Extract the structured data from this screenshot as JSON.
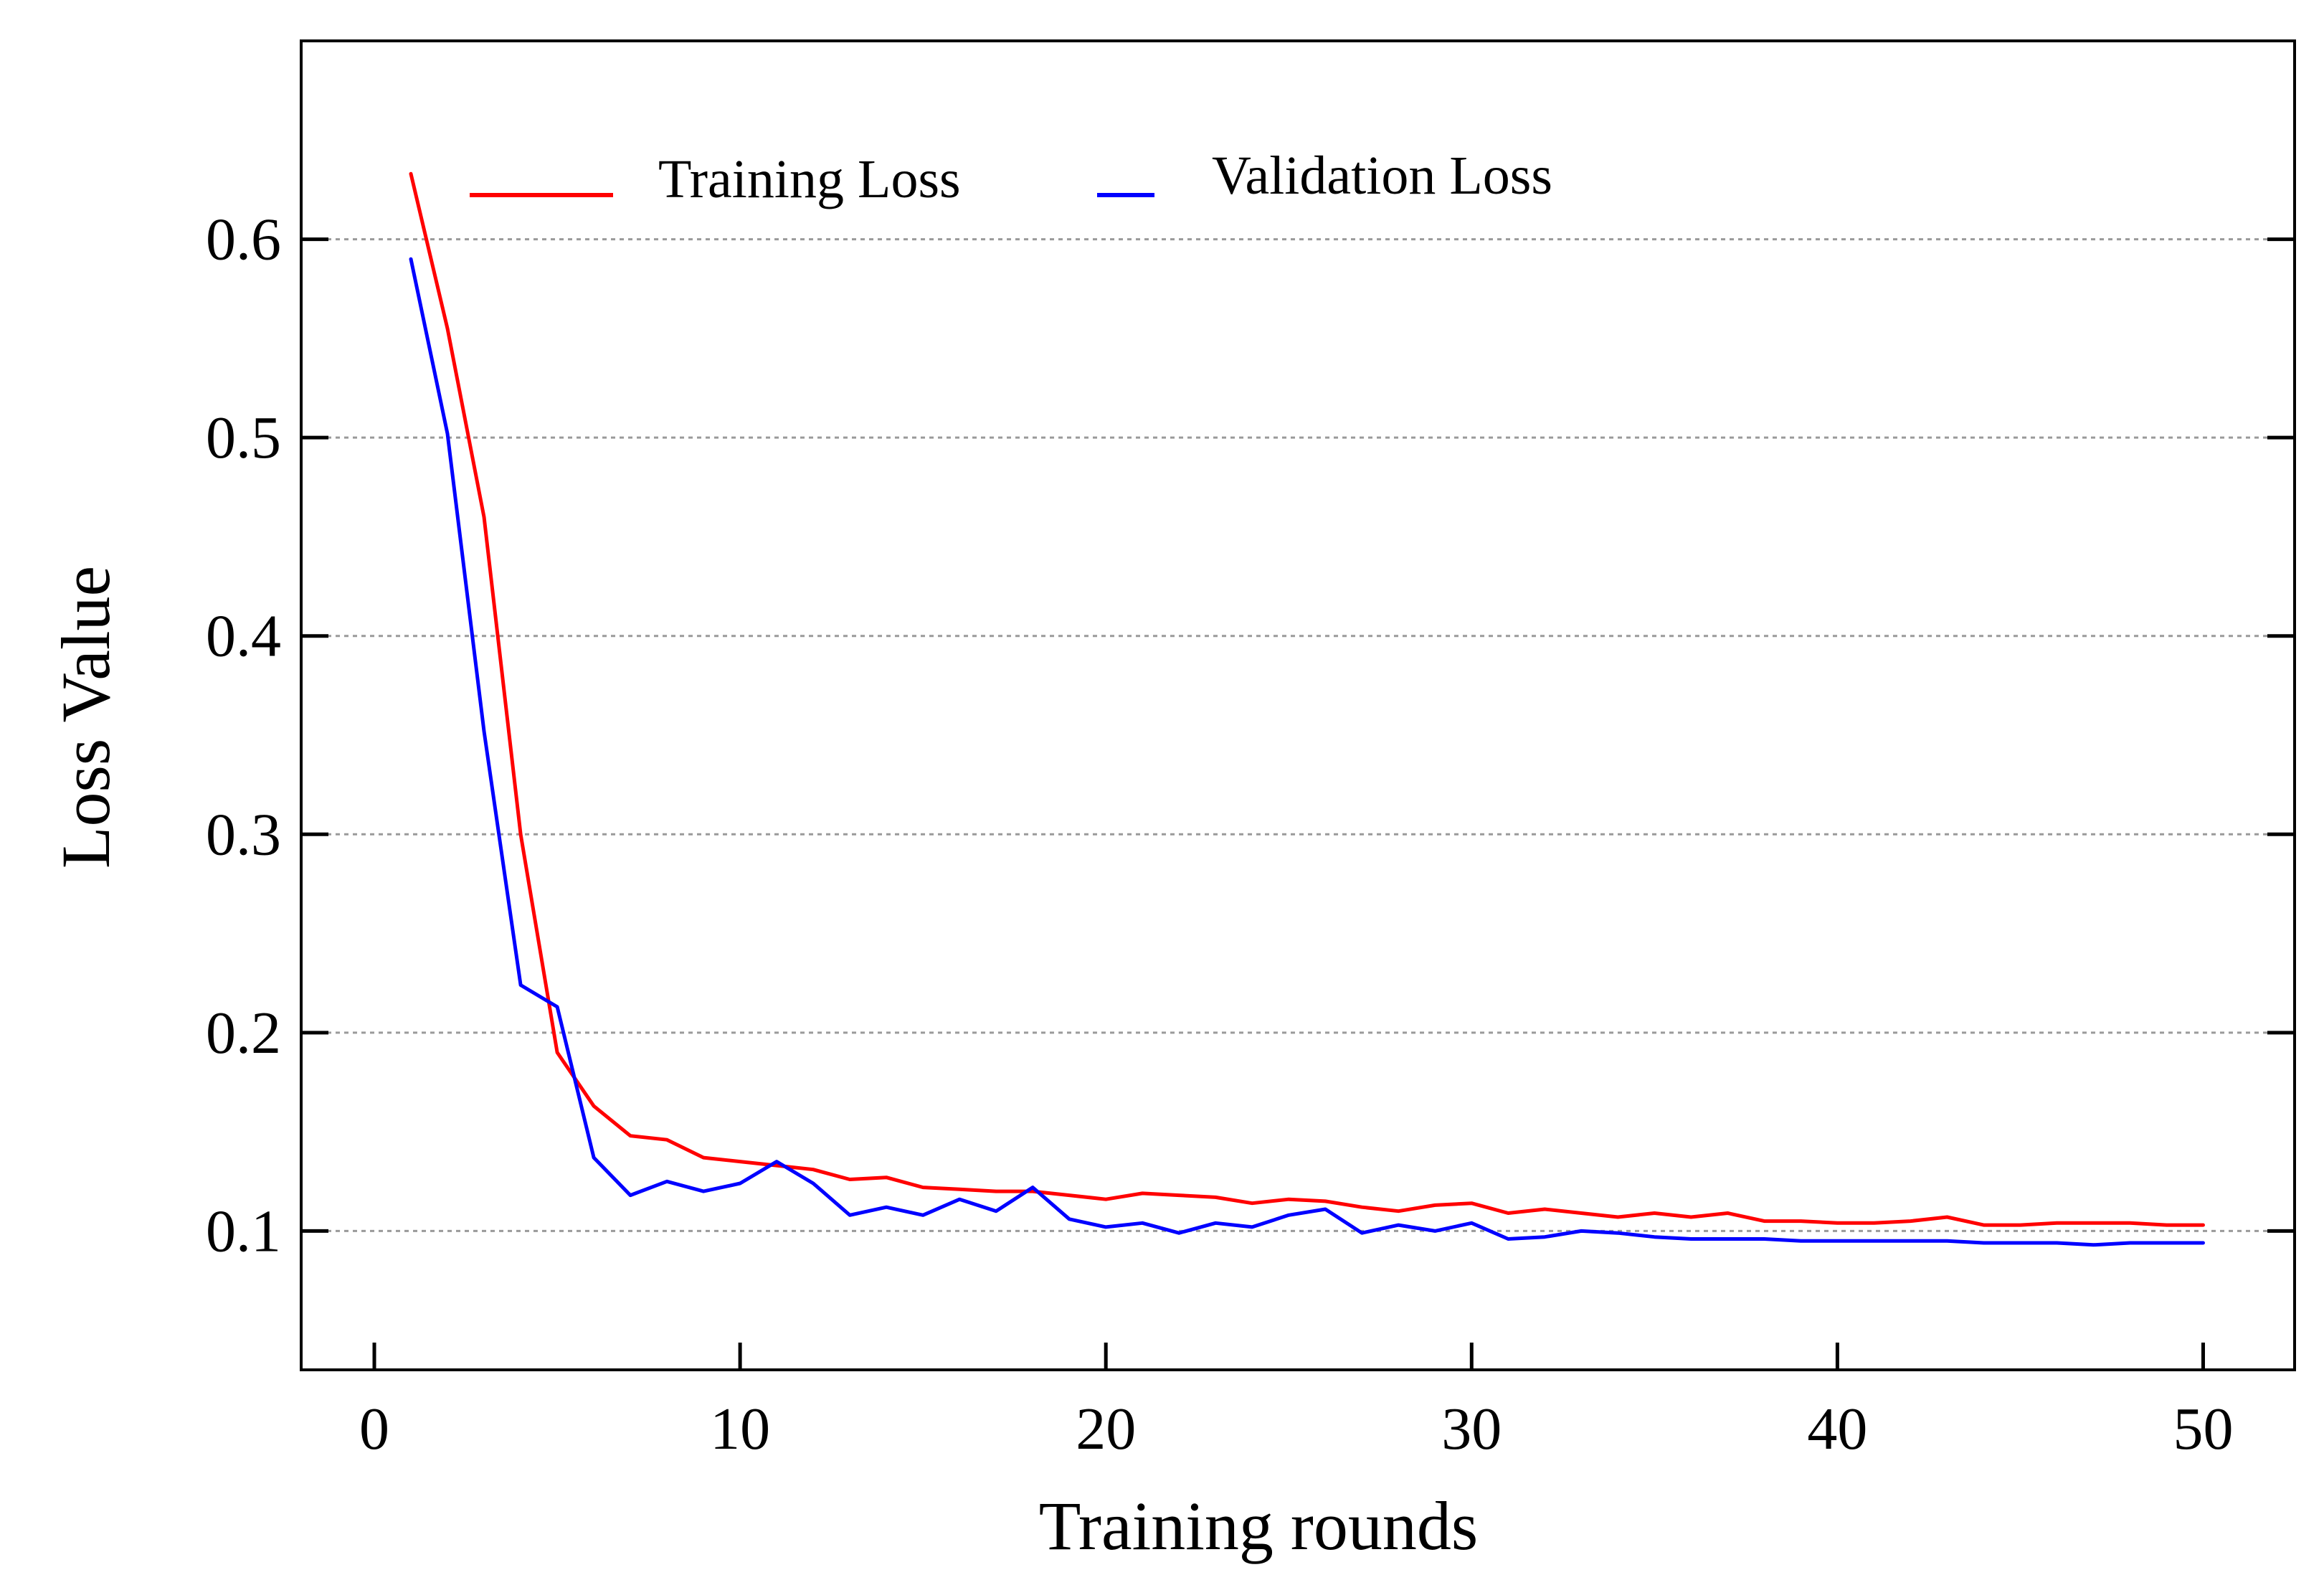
{
  "chart_data": {
    "type": "line",
    "title": "",
    "xlabel": "Training rounds",
    "ylabel": "Loss Value",
    "xlim": [
      -2,
      52.5
    ],
    "ylim": [
      0.03,
      0.7
    ],
    "xticks": [
      0,
      10,
      20,
      30,
      40,
      50
    ],
    "xtick_labels": [
      "0",
      "10",
      "20",
      "30",
      "40",
      "50"
    ],
    "yticks": [
      0.1,
      0.2,
      0.3,
      0.4,
      0.5,
      0.6
    ],
    "ytick_labels": [
      "0.1",
      "0.2",
      "0.3",
      "0.4",
      "0.5",
      "0.6"
    ],
    "grid": "horizontal dashed",
    "legend_position": "top-left",
    "series": [
      {
        "name": "Training Loss",
        "color": "#ff0000",
        "x": [
          1,
          2,
          3,
          4,
          5,
          6,
          7,
          8,
          9,
          10,
          11,
          12,
          13,
          14,
          15,
          16,
          17,
          18,
          19,
          20,
          21,
          22,
          23,
          24,
          25,
          26,
          27,
          28,
          29,
          30,
          31,
          32,
          33,
          34,
          35,
          36,
          37,
          38,
          39,
          40,
          41,
          42,
          43,
          44,
          45,
          46,
          47,
          48,
          49,
          50
        ],
        "values": [
          0.633,
          0.555,
          0.46,
          0.3,
          0.19,
          0.163,
          0.148,
          0.146,
          0.137,
          0.135,
          0.133,
          0.131,
          0.126,
          0.127,
          0.122,
          0.121,
          0.12,
          0.12,
          0.118,
          0.116,
          0.119,
          0.118,
          0.117,
          0.114,
          0.116,
          0.115,
          0.112,
          0.11,
          0.113,
          0.114,
          0.109,
          0.111,
          0.109,
          0.107,
          0.109,
          0.107,
          0.109,
          0.105,
          0.105,
          0.104,
          0.104,
          0.105,
          0.107,
          0.103,
          0.103,
          0.104,
          0.104,
          0.104,
          0.103,
          0.103
        ]
      },
      {
        "name": "Validation Loss",
        "color": "#0000ff",
        "x": [
          1,
          2,
          3,
          4,
          5,
          6,
          7,
          8,
          9,
          10,
          11,
          12,
          13,
          14,
          15,
          16,
          17,
          18,
          19,
          20,
          21,
          22,
          23,
          24,
          25,
          26,
          27,
          28,
          29,
          30,
          31,
          32,
          33,
          34,
          35,
          36,
          37,
          38,
          39,
          40,
          41,
          42,
          43,
          44,
          45,
          46,
          47,
          48,
          49,
          50
        ],
        "values": [
          0.59,
          0.502,
          0.352,
          0.224,
          0.213,
          0.137,
          0.118,
          0.125,
          0.12,
          0.124,
          0.135,
          0.124,
          0.108,
          0.112,
          0.108,
          0.116,
          0.11,
          0.122,
          0.106,
          0.102,
          0.104,
          0.099,
          0.104,
          0.102,
          0.108,
          0.111,
          0.099,
          0.103,
          0.1,
          0.104,
          0.096,
          0.097,
          0.1,
          0.099,
          0.097,
          0.096,
          0.096,
          0.096,
          0.095,
          0.095,
          0.095,
          0.095,
          0.095,
          0.094,
          0.094,
          0.094,
          0.093,
          0.094,
          0.094,
          0.094
        ]
      }
    ]
  }
}
